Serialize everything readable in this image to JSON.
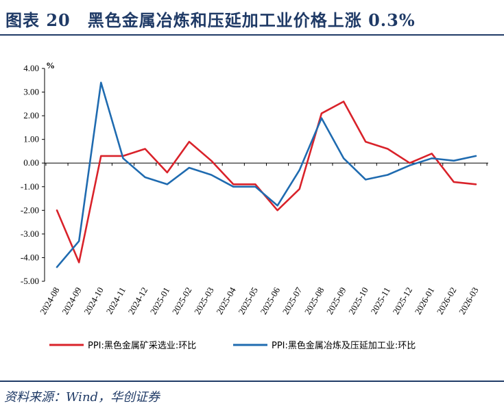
{
  "figure": {
    "title": "图表 20　黑色金属冶炼和压延加工业价格上涨 0.3%",
    "source": "资料来源：Wind，华创证券"
  },
  "chart_data": {
    "type": "line",
    "ylabel": "%",
    "ylim": [
      -5,
      4
    ],
    "yticks": [
      "4.00",
      "3.00",
      "2.00",
      "1.00",
      "0.00",
      "-1.00",
      "-2.00",
      "-3.00",
      "-4.00",
      "-5.00"
    ],
    "categories": [
      "2024-08",
      "2024-09",
      "2024-10",
      "2024-11",
      "2024-12",
      "2025-01",
      "2025-02",
      "2025-03",
      "2025-04",
      "2025-05",
      "2025-06",
      "2025-07",
      "2025-08",
      "2025-09",
      "2025-10",
      "2025-11",
      "2025-12",
      "2026-01",
      "2026-02",
      "2026-03"
    ],
    "grid": false,
    "legend_position": "bottom",
    "series": [
      {
        "name": "PPI:黑色金属矿采选业:环比",
        "color": "#d9222a",
        "values": [
          -2.0,
          -4.2,
          0.3,
          0.3,
          0.6,
          -0.4,
          0.9,
          0.1,
          -0.9,
          -0.9,
          -2.0,
          -1.1,
          2.1,
          2.6,
          0.9,
          0.6,
          0.0,
          0.4,
          -0.8,
          -0.9
        ]
      },
      {
        "name": "PPI:黑色金属冶炼及压延加工业:环比",
        "color": "#1f6bb0",
        "values": [
          -4.4,
          -3.3,
          3.4,
          0.2,
          -0.6,
          -0.9,
          -0.2,
          -0.5,
          -1.0,
          -1.0,
          -1.8,
          -0.3,
          1.9,
          0.2,
          -0.7,
          -0.5,
          -0.1,
          0.2,
          0.1,
          0.3
        ]
      }
    ]
  }
}
